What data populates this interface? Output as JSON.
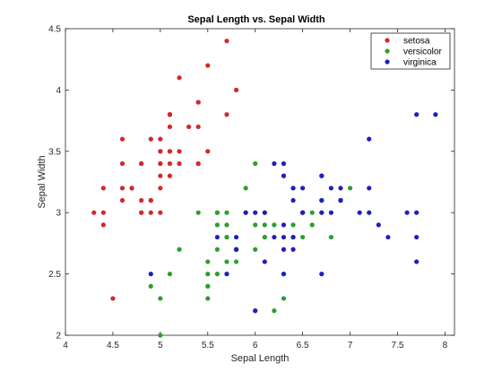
{
  "chart_data": {
    "type": "scatter",
    "title": "Sepal Length vs. Sepal Width",
    "xlabel": "Sepal Length",
    "ylabel": "Sepal Width",
    "xlim": [
      4,
      8.1
    ],
    "ylim": [
      2,
      4.5
    ],
    "xticks": [
      "4",
      "4.5",
      "5",
      "5.5",
      "6",
      "6.5",
      "7",
      "7.5",
      "8"
    ],
    "xtick_values": [
      4,
      4.5,
      5,
      5.5,
      6,
      6.5,
      7,
      7.5,
      8
    ],
    "yticks": [
      "2",
      "2.5",
      "3",
      "3.5",
      "4",
      "4.5"
    ],
    "ytick_values": [
      2,
      2.5,
      3,
      3.5,
      4,
      4.5
    ],
    "grid": false,
    "legend_position": "top-right",
    "series": [
      {
        "name": "setosa",
        "color": "#d62728",
        "points": [
          [
            5.1,
            3.5
          ],
          [
            4.9,
            3.0
          ],
          [
            4.7,
            3.2
          ],
          [
            4.6,
            3.1
          ],
          [
            5.0,
            3.6
          ],
          [
            5.4,
            3.9
          ],
          [
            4.6,
            3.4
          ],
          [
            5.0,
            3.4
          ],
          [
            4.4,
            2.9
          ],
          [
            4.9,
            3.1
          ],
          [
            5.4,
            3.7
          ],
          [
            4.8,
            3.4
          ],
          [
            4.8,
            3.0
          ],
          [
            4.3,
            3.0
          ],
          [
            5.8,
            4.0
          ],
          [
            5.7,
            4.4
          ],
          [
            5.4,
            3.9
          ],
          [
            5.1,
            3.5
          ],
          [
            5.7,
            3.8
          ],
          [
            5.1,
            3.8
          ],
          [
            5.4,
            3.4
          ],
          [
            5.1,
            3.7
          ],
          [
            4.6,
            3.6
          ],
          [
            5.1,
            3.3
          ],
          [
            4.8,
            3.4
          ],
          [
            5.0,
            3.0
          ],
          [
            5.0,
            3.4
          ],
          [
            5.2,
            3.5
          ],
          [
            5.2,
            3.4
          ],
          [
            4.7,
            3.2
          ],
          [
            4.8,
            3.1
          ],
          [
            5.4,
            3.4
          ],
          [
            5.2,
            4.1
          ],
          [
            5.5,
            4.2
          ],
          [
            4.9,
            3.1
          ],
          [
            5.0,
            3.2
          ],
          [
            5.5,
            3.5
          ],
          [
            4.9,
            3.6
          ],
          [
            4.4,
            3.0
          ],
          [
            5.1,
            3.4
          ],
          [
            5.0,
            3.5
          ],
          [
            4.5,
            2.3
          ],
          [
            4.4,
            3.2
          ],
          [
            5.0,
            3.5
          ],
          [
            5.1,
            3.8
          ],
          [
            4.8,
            3.0
          ],
          [
            5.1,
            3.8
          ],
          [
            4.6,
            3.2
          ],
          [
            5.3,
            3.7
          ],
          [
            5.0,
            3.3
          ]
        ]
      },
      {
        "name": "versicolor",
        "color": "#2ca02c",
        "points": [
          [
            7.0,
            3.2
          ],
          [
            6.4,
            3.2
          ],
          [
            6.9,
            3.1
          ],
          [
            5.5,
            2.3
          ],
          [
            6.5,
            2.8
          ],
          [
            5.7,
            2.8
          ],
          [
            6.3,
            3.3
          ],
          [
            4.9,
            2.4
          ],
          [
            6.6,
            2.9
          ],
          [
            5.2,
            2.7
          ],
          [
            5.0,
            2.0
          ],
          [
            5.9,
            3.0
          ],
          [
            6.0,
            2.2
          ],
          [
            6.1,
            2.9
          ],
          [
            5.6,
            2.9
          ],
          [
            6.7,
            3.1
          ],
          [
            5.6,
            3.0
          ],
          [
            5.8,
            2.7
          ],
          [
            6.2,
            2.2
          ],
          [
            5.6,
            2.5
          ],
          [
            5.9,
            3.2
          ],
          [
            6.1,
            2.8
          ],
          [
            6.3,
            2.5
          ],
          [
            6.1,
            2.8
          ],
          [
            6.4,
            2.9
          ],
          [
            6.6,
            3.0
          ],
          [
            6.8,
            2.8
          ],
          [
            6.7,
            3.0
          ],
          [
            6.0,
            2.9
          ],
          [
            5.7,
            2.6
          ],
          [
            5.5,
            2.4
          ],
          [
            5.5,
            2.4
          ],
          [
            5.8,
            2.7
          ],
          [
            6.0,
            2.7
          ],
          [
            5.4,
            3.0
          ],
          [
            6.0,
            3.4
          ],
          [
            6.7,
            3.1
          ],
          [
            6.3,
            2.3
          ],
          [
            5.6,
            3.0
          ],
          [
            5.5,
            2.5
          ],
          [
            5.5,
            2.6
          ],
          [
            6.1,
            3.0
          ],
          [
            5.8,
            2.6
          ],
          [
            5.0,
            2.3
          ],
          [
            5.6,
            2.7
          ],
          [
            5.7,
            3.0
          ],
          [
            5.7,
            2.9
          ],
          [
            6.2,
            2.9
          ],
          [
            5.1,
            2.5
          ],
          [
            5.7,
            2.8
          ]
        ]
      },
      {
        "name": "virginica",
        "color": "#1f1fbf",
        "points": [
          [
            6.3,
            3.3
          ],
          [
            5.8,
            2.7
          ],
          [
            7.1,
            3.0
          ],
          [
            6.3,
            2.9
          ],
          [
            6.5,
            3.0
          ],
          [
            7.6,
            3.0
          ],
          [
            4.9,
            2.5
          ],
          [
            7.3,
            2.9
          ],
          [
            6.7,
            2.5
          ],
          [
            7.2,
            3.6
          ],
          [
            6.5,
            3.2
          ],
          [
            6.4,
            2.7
          ],
          [
            6.8,
            3.0
          ],
          [
            5.7,
            2.5
          ],
          [
            5.8,
            2.8
          ],
          [
            6.4,
            3.2
          ],
          [
            6.5,
            3.0
          ],
          [
            7.7,
            3.8
          ],
          [
            7.7,
            2.6
          ],
          [
            6.0,
            2.2
          ],
          [
            6.9,
            3.2
          ],
          [
            5.6,
            2.8
          ],
          [
            7.7,
            2.8
          ],
          [
            6.3,
            2.7
          ],
          [
            6.7,
            3.3
          ],
          [
            7.2,
            3.2
          ],
          [
            6.2,
            2.8
          ],
          [
            6.1,
            3.0
          ],
          [
            6.4,
            2.8
          ],
          [
            7.2,
            3.0
          ],
          [
            7.4,
            2.8
          ],
          [
            7.9,
            3.8
          ],
          [
            6.4,
            2.8
          ],
          [
            6.3,
            2.8
          ],
          [
            6.1,
            2.6
          ],
          [
            7.7,
            3.0
          ],
          [
            6.3,
            3.4
          ],
          [
            6.4,
            3.1
          ],
          [
            6.0,
            3.0
          ],
          [
            6.9,
            3.1
          ],
          [
            6.7,
            3.1
          ],
          [
            6.9,
            3.1
          ],
          [
            5.8,
            2.7
          ],
          [
            6.8,
            3.2
          ],
          [
            6.7,
            3.3
          ],
          [
            6.7,
            3.0
          ],
          [
            6.3,
            2.5
          ],
          [
            6.5,
            3.0
          ],
          [
            6.2,
            3.4
          ],
          [
            5.9,
            3.0
          ]
        ]
      }
    ]
  }
}
